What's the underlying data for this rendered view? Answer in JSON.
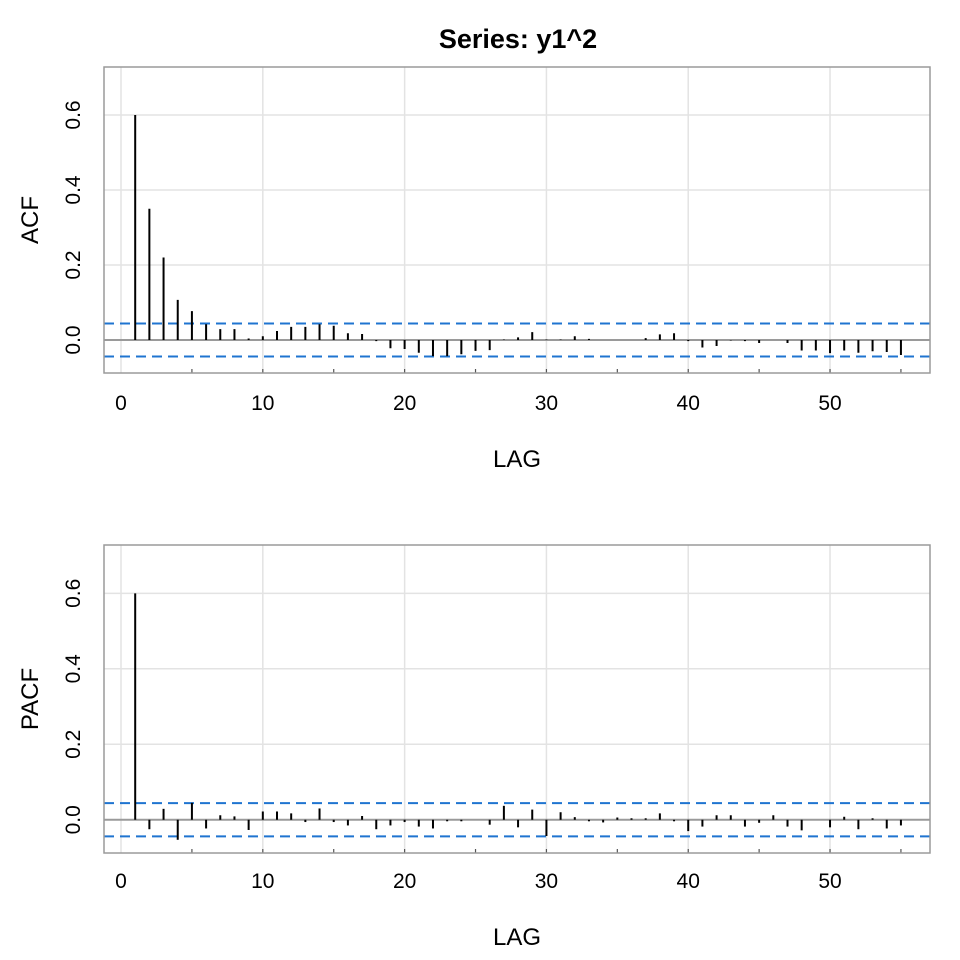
{
  "chart_data": [
    {
      "type": "bar",
      "title": "Series:  y1^2",
      "xlabel": "LAG",
      "ylabel": "ACF",
      "xlim": [
        -1.2,
        57.05
      ],
      "ylim": [
        -0.088,
        0.728
      ],
      "xticks": [
        0,
        10,
        20,
        30,
        40,
        50
      ],
      "yticks": [
        0.0,
        0.2,
        0.4,
        0.6
      ],
      "ytick_labels": [
        "0.0",
        "0.2",
        "0.4",
        "0.6"
      ],
      "grid": true,
      "confidence_bounds": [
        -0.044,
        0.044
      ],
      "lags": [
        1,
        2,
        3,
        4,
        5,
        6,
        7,
        8,
        9,
        10,
        11,
        12,
        13,
        14,
        15,
        16,
        17,
        18,
        19,
        20,
        21,
        22,
        23,
        24,
        25,
        26,
        27,
        28,
        29,
        30,
        31,
        32,
        33,
        34,
        35,
        36,
        37,
        38,
        39,
        40,
        41,
        42,
        43,
        44,
        45,
        46,
        47,
        48,
        49,
        50,
        51,
        52,
        53,
        54,
        55
      ],
      "values": [
        0.6,
        0.35,
        0.22,
        0.107,
        0.077,
        0.042,
        0.029,
        0.029,
        0.004,
        0.01,
        0.024,
        0.035,
        0.035,
        0.042,
        0.038,
        0.018,
        0.016,
        -0.003,
        -0.022,
        -0.024,
        -0.034,
        -0.043,
        -0.043,
        -0.038,
        -0.029,
        -0.027,
        0.001,
        0.007,
        0.021,
        0.001,
        0.001,
        0.01,
        0.003,
        0.0,
        0.0,
        0.0,
        0.005,
        0.015,
        0.018,
        -0.003,
        -0.02,
        -0.016,
        -0.001,
        -0.003,
        -0.008,
        0.0,
        -0.008,
        -0.028,
        -0.028,
        -0.035,
        -0.028,
        -0.034,
        -0.03,
        -0.032,
        -0.04
      ]
    },
    {
      "type": "bar",
      "xlabel": "LAG",
      "ylabel": "PACF",
      "xlim": [
        -1.2,
        57.05
      ],
      "ylim": [
        -0.088,
        0.728
      ],
      "xticks": [
        0,
        10,
        20,
        30,
        40,
        50
      ],
      "yticks": [
        0.0,
        0.2,
        0.4,
        0.6
      ],
      "ytick_labels": [
        "0.0",
        "0.2",
        "0.4",
        "0.6"
      ],
      "grid": true,
      "confidence_bounds": [
        -0.044,
        0.044
      ],
      "lags": [
        1,
        2,
        3,
        4,
        5,
        6,
        7,
        8,
        9,
        10,
        11,
        12,
        13,
        14,
        15,
        16,
        17,
        18,
        19,
        20,
        21,
        22,
        23,
        24,
        25,
        26,
        27,
        28,
        29,
        30,
        31,
        32,
        33,
        34,
        35,
        36,
        37,
        38,
        39,
        40,
        41,
        42,
        43,
        44,
        45,
        46,
        47,
        48,
        49,
        50,
        51,
        52,
        53,
        54,
        55
      ],
      "values": [
        0.6,
        -0.025,
        0.029,
        -0.053,
        0.045,
        -0.023,
        0.012,
        0.009,
        -0.027,
        0.022,
        0.022,
        0.017,
        -0.006,
        0.03,
        -0.006,
        -0.015,
        0.01,
        -0.025,
        -0.015,
        -0.006,
        -0.018,
        -0.023,
        -0.004,
        -0.004,
        0.0,
        -0.013,
        0.037,
        -0.02,
        0.027,
        -0.043,
        0.02,
        0.007,
        -0.004,
        -0.007,
        0.006,
        0.004,
        0.004,
        0.017,
        -0.004,
        -0.03,
        -0.018,
        0.012,
        0.012,
        -0.018,
        -0.008,
        0.012,
        -0.018,
        -0.028,
        0.0,
        -0.02,
        0.008,
        -0.025,
        0.004,
        -0.023,
        -0.015
      ]
    }
  ]
}
